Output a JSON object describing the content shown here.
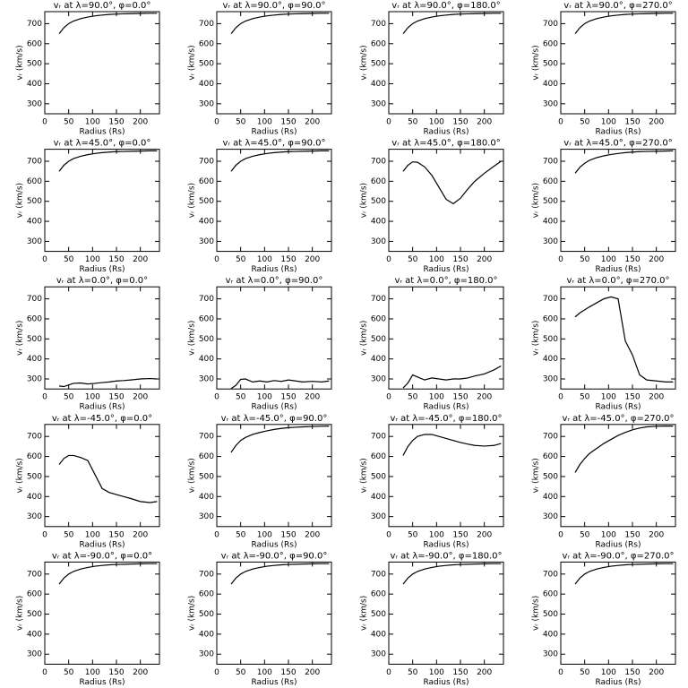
{
  "chart_data": [
    {
      "type": "line",
      "title": "vᵣ at λ=90.0°, φ=0.0°",
      "xlabel": "Radius (Rs)",
      "ylabel": "vᵣ (km/s)",
      "x": [
        30,
        40,
        50,
        60,
        75,
        90,
        105,
        120,
        135,
        150,
        165,
        180,
        200,
        220,
        235
      ],
      "values": [
        650,
        680,
        700,
        713,
        725,
        733,
        739,
        743,
        746,
        748,
        749,
        750,
        751,
        752,
        752
      ],
      "color": "#000000",
      "xlim": [
        0,
        240
      ],
      "ylim": [
        250,
        760
      ],
      "xticks": [
        0,
        50,
        100,
        150,
        200
      ],
      "yticks": [
        300,
        400,
        500,
        600,
        700
      ]
    },
    {
      "type": "line",
      "title": "vᵣ at λ=90.0°, φ=90.0°",
      "xlabel": "Radius (Rs)",
      "ylabel": "vᵣ (km/s)",
      "x": [
        30,
        40,
        50,
        60,
        75,
        90,
        105,
        120,
        135,
        150,
        165,
        180,
        200,
        220,
        235
      ],
      "values": [
        650,
        680,
        700,
        713,
        725,
        733,
        739,
        743,
        746,
        748,
        749,
        750,
        751,
        752,
        752
      ],
      "color": "#000000",
      "xlim": [
        0,
        240
      ],
      "ylim": [
        250,
        760
      ],
      "xticks": [
        0,
        50,
        100,
        150,
        200
      ],
      "yticks": [
        300,
        400,
        500,
        600,
        700
      ]
    },
    {
      "type": "line",
      "title": "vᵣ at λ=90.0°, φ=180.0°",
      "xlabel": "Radius (Rs)",
      "ylabel": "vᵣ (km/s)",
      "x": [
        30,
        40,
        50,
        60,
        75,
        90,
        105,
        120,
        135,
        150,
        165,
        180,
        200,
        220,
        235
      ],
      "values": [
        650,
        680,
        700,
        713,
        725,
        733,
        739,
        743,
        746,
        748,
        749,
        750,
        751,
        752,
        752
      ],
      "color": "#000000",
      "xlim": [
        0,
        240
      ],
      "ylim": [
        250,
        760
      ],
      "xticks": [
        0,
        50,
        100,
        150,
        200
      ],
      "yticks": [
        300,
        400,
        500,
        600,
        700
      ]
    },
    {
      "type": "line",
      "title": "vᵣ at λ=90.0°, φ=270.0°",
      "xlabel": "Radius (Rs)",
      "ylabel": "vᵣ (km/s)",
      "x": [
        30,
        40,
        50,
        60,
        75,
        90,
        105,
        120,
        135,
        150,
        165,
        180,
        200,
        220,
        235
      ],
      "values": [
        650,
        680,
        700,
        713,
        725,
        733,
        739,
        743,
        746,
        748,
        749,
        750,
        751,
        752,
        752
      ],
      "color": "#000000",
      "xlim": [
        0,
        240
      ],
      "ylim": [
        250,
        760
      ],
      "xticks": [
        0,
        50,
        100,
        150,
        200
      ],
      "yticks": [
        300,
        400,
        500,
        600,
        700
      ]
    },
    {
      "type": "line",
      "title": "vᵣ at λ=45.0°, φ=0.0°",
      "xlabel": "Radius (Rs)",
      "ylabel": "vᵣ (km/s)",
      "x": [
        30,
        40,
        50,
        60,
        75,
        90,
        105,
        120,
        135,
        150,
        165,
        180,
        200,
        220,
        235
      ],
      "values": [
        650,
        680,
        700,
        713,
        725,
        733,
        739,
        743,
        746,
        748,
        749,
        750,
        751,
        752,
        752
      ],
      "color": "#000000",
      "xlim": [
        0,
        240
      ],
      "ylim": [
        250,
        760
      ],
      "xticks": [
        0,
        50,
        100,
        150,
        200
      ],
      "yticks": [
        300,
        400,
        500,
        600,
        700
      ]
    },
    {
      "type": "line",
      "title": "vᵣ at λ=45.0°, φ=90.0°",
      "xlabel": "Radius (Rs)",
      "ylabel": "vᵣ (km/s)",
      "x": [
        30,
        40,
        50,
        60,
        75,
        90,
        105,
        120,
        135,
        150,
        165,
        180,
        200,
        220,
        235
      ],
      "values": [
        650,
        680,
        700,
        713,
        725,
        733,
        739,
        743,
        746,
        748,
        749,
        750,
        751,
        752,
        752
      ],
      "color": "#000000",
      "xlim": [
        0,
        240
      ],
      "ylim": [
        250,
        760
      ],
      "xticks": [
        0,
        50,
        100,
        150,
        200
      ],
      "yticks": [
        300,
        400,
        500,
        600,
        700
      ]
    },
    {
      "type": "line",
      "title": "vᵣ at λ=45.0°, φ=180.0°",
      "xlabel": "Radius (Rs)",
      "ylabel": "vᵣ (km/s)",
      "x": [
        30,
        40,
        50,
        60,
        75,
        90,
        105,
        120,
        135,
        150,
        165,
        180,
        200,
        220,
        235
      ],
      "values": [
        650,
        680,
        697,
        695,
        672,
        630,
        570,
        510,
        488,
        515,
        560,
        600,
        640,
        675,
        700
      ],
      "color": "#000000",
      "xlim": [
        0,
        240
      ],
      "ylim": [
        250,
        760
      ],
      "xticks": [
        0,
        50,
        100,
        150,
        200
      ],
      "yticks": [
        300,
        400,
        500,
        600,
        700
      ]
    },
    {
      "type": "line",
      "title": "vᵣ at λ=45.0°, φ=270.0°",
      "xlabel": "Radius (Rs)",
      "ylabel": "vᵣ (km/s)",
      "x": [
        30,
        40,
        50,
        60,
        75,
        90,
        105,
        120,
        135,
        150,
        165,
        180,
        200,
        220,
        235
      ],
      "values": [
        640,
        670,
        690,
        705,
        718,
        727,
        734,
        739,
        743,
        746,
        748,
        749,
        750,
        751,
        752
      ],
      "color": "#000000",
      "xlim": [
        0,
        240
      ],
      "ylim": [
        250,
        760
      ],
      "xticks": [
        0,
        50,
        100,
        150,
        200
      ],
      "yticks": [
        300,
        400,
        500,
        600,
        700
      ]
    },
    {
      "type": "line",
      "title": "vᵣ at λ=0.0°, φ=0.0°",
      "xlabel": "Radius (Rs)",
      "ylabel": "vᵣ (km/s)",
      "x": [
        30,
        40,
        50,
        60,
        75,
        90,
        105,
        120,
        135,
        150,
        165,
        180,
        200,
        220,
        235
      ],
      "values": [
        265,
        262,
        270,
        278,
        280,
        275,
        278,
        282,
        285,
        290,
        292,
        295,
        300,
        302,
        300
      ],
      "color": "#000000",
      "xlim": [
        0,
        240
      ],
      "ylim": [
        250,
        760
      ],
      "xticks": [
        0,
        50,
        100,
        150,
        200
      ],
      "yticks": [
        300,
        400,
        500,
        600,
        700
      ]
    },
    {
      "type": "line",
      "title": "vᵣ at λ=0.0°, φ=90.0°",
      "xlabel": "Radius (Rs)",
      "ylabel": "vᵣ (km/s)",
      "x": [
        30,
        40,
        50,
        60,
        75,
        90,
        105,
        120,
        135,
        150,
        165,
        180,
        200,
        220,
        235
      ],
      "values": [
        252,
        268,
        298,
        300,
        285,
        290,
        285,
        292,
        288,
        295,
        290,
        285,
        288,
        285,
        290
      ],
      "color": "#000000",
      "xlim": [
        0,
        240
      ],
      "ylim": [
        250,
        760
      ],
      "xticks": [
        0,
        50,
        100,
        150,
        200
      ],
      "yticks": [
        300,
        400,
        500,
        600,
        700
      ]
    },
    {
      "type": "line",
      "title": "vᵣ at λ=0.0°, φ=180.0°",
      "xlabel": "Radius (Rs)",
      "ylabel": "vᵣ (km/s)",
      "x": [
        30,
        40,
        50,
        60,
        75,
        90,
        105,
        120,
        135,
        150,
        165,
        180,
        200,
        220,
        235
      ],
      "values": [
        255,
        280,
        320,
        310,
        295,
        305,
        300,
        295,
        300,
        300,
        305,
        315,
        325,
        345,
        365
      ],
      "color": "#000000",
      "xlim": [
        0,
        240
      ],
      "ylim": [
        250,
        760
      ],
      "xticks": [
        0,
        50,
        100,
        150,
        200
      ],
      "yticks": [
        300,
        400,
        500,
        600,
        700
      ]
    },
    {
      "type": "line",
      "title": "vᵣ at λ=0.0°, φ=270.0°",
      "xlabel": "Radius (Rs)",
      "ylabel": "vᵣ (km/s)",
      "x": [
        30,
        40,
        50,
        60,
        75,
        90,
        105,
        120,
        135,
        150,
        165,
        180,
        200,
        220,
        235
      ],
      "values": [
        610,
        630,
        645,
        660,
        680,
        700,
        710,
        700,
        490,
        420,
        320,
        295,
        290,
        285,
        285
      ],
      "color": "#000000",
      "xlim": [
        0,
        240
      ],
      "ylim": [
        250,
        760
      ],
      "xticks": [
        0,
        50,
        100,
        150,
        200
      ],
      "yticks": [
        300,
        400,
        500,
        600,
        700
      ]
    },
    {
      "type": "line",
      "title": "vᵣ at λ=-45.0°, φ=0.0°",
      "xlabel": "Radius (Rs)",
      "ylabel": "vᵣ (km/s)",
      "x": [
        30,
        40,
        50,
        60,
        75,
        90,
        105,
        120,
        135,
        150,
        165,
        180,
        200,
        220,
        235
      ],
      "values": [
        560,
        590,
        605,
        605,
        595,
        580,
        510,
        440,
        420,
        410,
        400,
        390,
        375,
        370,
        375
      ],
      "color": "#000000",
      "xlim": [
        0,
        240
      ],
      "ylim": [
        250,
        760
      ],
      "xticks": [
        0,
        50,
        100,
        150,
        200
      ],
      "yticks": [
        300,
        400,
        500,
        600,
        700
      ]
    },
    {
      "type": "line",
      "title": "vᵣ at λ=-45.0°, φ=90.0°",
      "xlabel": "Radius (Rs)",
      "ylabel": "vᵣ (km/s)",
      "x": [
        30,
        40,
        50,
        60,
        75,
        90,
        105,
        120,
        135,
        150,
        165,
        180,
        200,
        220,
        235
      ],
      "values": [
        620,
        655,
        680,
        695,
        710,
        720,
        728,
        735,
        740,
        744,
        746,
        748,
        750,
        751,
        752
      ],
      "color": "#000000",
      "xlim": [
        0,
        240
      ],
      "ylim": [
        250,
        760
      ],
      "xticks": [
        0,
        50,
        100,
        150,
        200
      ],
      "yticks": [
        300,
        400,
        500,
        600,
        700
      ]
    },
    {
      "type": "line",
      "title": "vᵣ at λ=-45.0°, φ=180.0°",
      "xlabel": "Radius (Rs)",
      "ylabel": "vᵣ (km/s)",
      "x": [
        30,
        40,
        50,
        60,
        75,
        90,
        105,
        120,
        135,
        150,
        165,
        180,
        200,
        220,
        235
      ],
      "values": [
        605,
        650,
        680,
        700,
        710,
        710,
        700,
        690,
        680,
        670,
        662,
        655,
        652,
        655,
        665
      ],
      "color": "#000000",
      "xlim": [
        0,
        240
      ],
      "ylim": [
        250,
        760
      ],
      "xticks": [
        0,
        50,
        100,
        150,
        200
      ],
      "yticks": [
        300,
        400,
        500,
        600,
        700
      ]
    },
    {
      "type": "line",
      "title": "vᵣ at λ=-45.0°, φ=270.0°",
      "xlabel": "Radius (Rs)",
      "ylabel": "vᵣ (km/s)",
      "x": [
        30,
        40,
        50,
        60,
        75,
        90,
        105,
        120,
        135,
        150,
        165,
        180,
        200,
        220,
        235
      ],
      "values": [
        520,
        560,
        590,
        615,
        640,
        665,
        685,
        705,
        720,
        733,
        742,
        748,
        751,
        752,
        752
      ],
      "color": "#000000",
      "xlim": [
        0,
        240
      ],
      "ylim": [
        250,
        760
      ],
      "xticks": [
        0,
        50,
        100,
        150,
        200
      ],
      "yticks": [
        300,
        400,
        500,
        600,
        700
      ]
    },
    {
      "type": "line",
      "title": "vᵣ at λ=-90.0°, φ=0.0°",
      "xlabel": "Radius (Rs)",
      "ylabel": "vᵣ (km/s)",
      "x": [
        30,
        40,
        50,
        60,
        75,
        90,
        105,
        120,
        135,
        150,
        165,
        180,
        200,
        220,
        235
      ],
      "values": [
        650,
        680,
        700,
        713,
        725,
        733,
        739,
        743,
        746,
        748,
        749,
        750,
        751,
        752,
        752
      ],
      "color": "#000000",
      "xlim": [
        0,
        240
      ],
      "ylim": [
        250,
        760
      ],
      "xticks": [
        0,
        50,
        100,
        150,
        200
      ],
      "yticks": [
        300,
        400,
        500,
        600,
        700
      ]
    },
    {
      "type": "line",
      "title": "vᵣ at λ=-90.0°, φ=90.0°",
      "xlabel": "Radius (Rs)",
      "ylabel": "vᵣ (km/s)",
      "x": [
        30,
        40,
        50,
        60,
        75,
        90,
        105,
        120,
        135,
        150,
        165,
        180,
        200,
        220,
        235
      ],
      "values": [
        650,
        680,
        700,
        713,
        725,
        733,
        739,
        743,
        746,
        748,
        749,
        750,
        751,
        752,
        752
      ],
      "color": "#000000",
      "xlim": [
        0,
        240
      ],
      "ylim": [
        250,
        760
      ],
      "xticks": [
        0,
        50,
        100,
        150,
        200
      ],
      "yticks": [
        300,
        400,
        500,
        600,
        700
      ]
    },
    {
      "type": "line",
      "title": "vᵣ at λ=-90.0°, φ=180.0°",
      "xlabel": "Radius (Rs)",
      "ylabel": "vᵣ (km/s)",
      "x": [
        30,
        40,
        50,
        60,
        75,
        90,
        105,
        120,
        135,
        150,
        165,
        180,
        200,
        220,
        235
      ],
      "values": [
        650,
        680,
        700,
        713,
        725,
        733,
        739,
        743,
        746,
        748,
        749,
        750,
        751,
        752,
        752
      ],
      "color": "#000000",
      "xlim": [
        0,
        240
      ],
      "ylim": [
        250,
        760
      ],
      "xticks": [
        0,
        50,
        100,
        150,
        200
      ],
      "yticks": [
        300,
        400,
        500,
        600,
        700
      ]
    },
    {
      "type": "line",
      "title": "vᵣ at λ=-90.0°, φ=270.0°",
      "xlabel": "Radius (Rs)",
      "ylabel": "vᵣ (km/s)",
      "x": [
        30,
        40,
        50,
        60,
        75,
        90,
        105,
        120,
        135,
        150,
        165,
        180,
        200,
        220,
        235
      ],
      "values": [
        650,
        680,
        700,
        713,
        725,
        733,
        739,
        743,
        746,
        748,
        749,
        750,
        751,
        752,
        752
      ],
      "color": "#000000",
      "xlim": [
        0,
        240
      ],
      "ylim": [
        250,
        760
      ],
      "xticks": [
        0,
        50,
        100,
        150,
        200
      ],
      "yticks": [
        300,
        400,
        500,
        600,
        700
      ]
    }
  ]
}
